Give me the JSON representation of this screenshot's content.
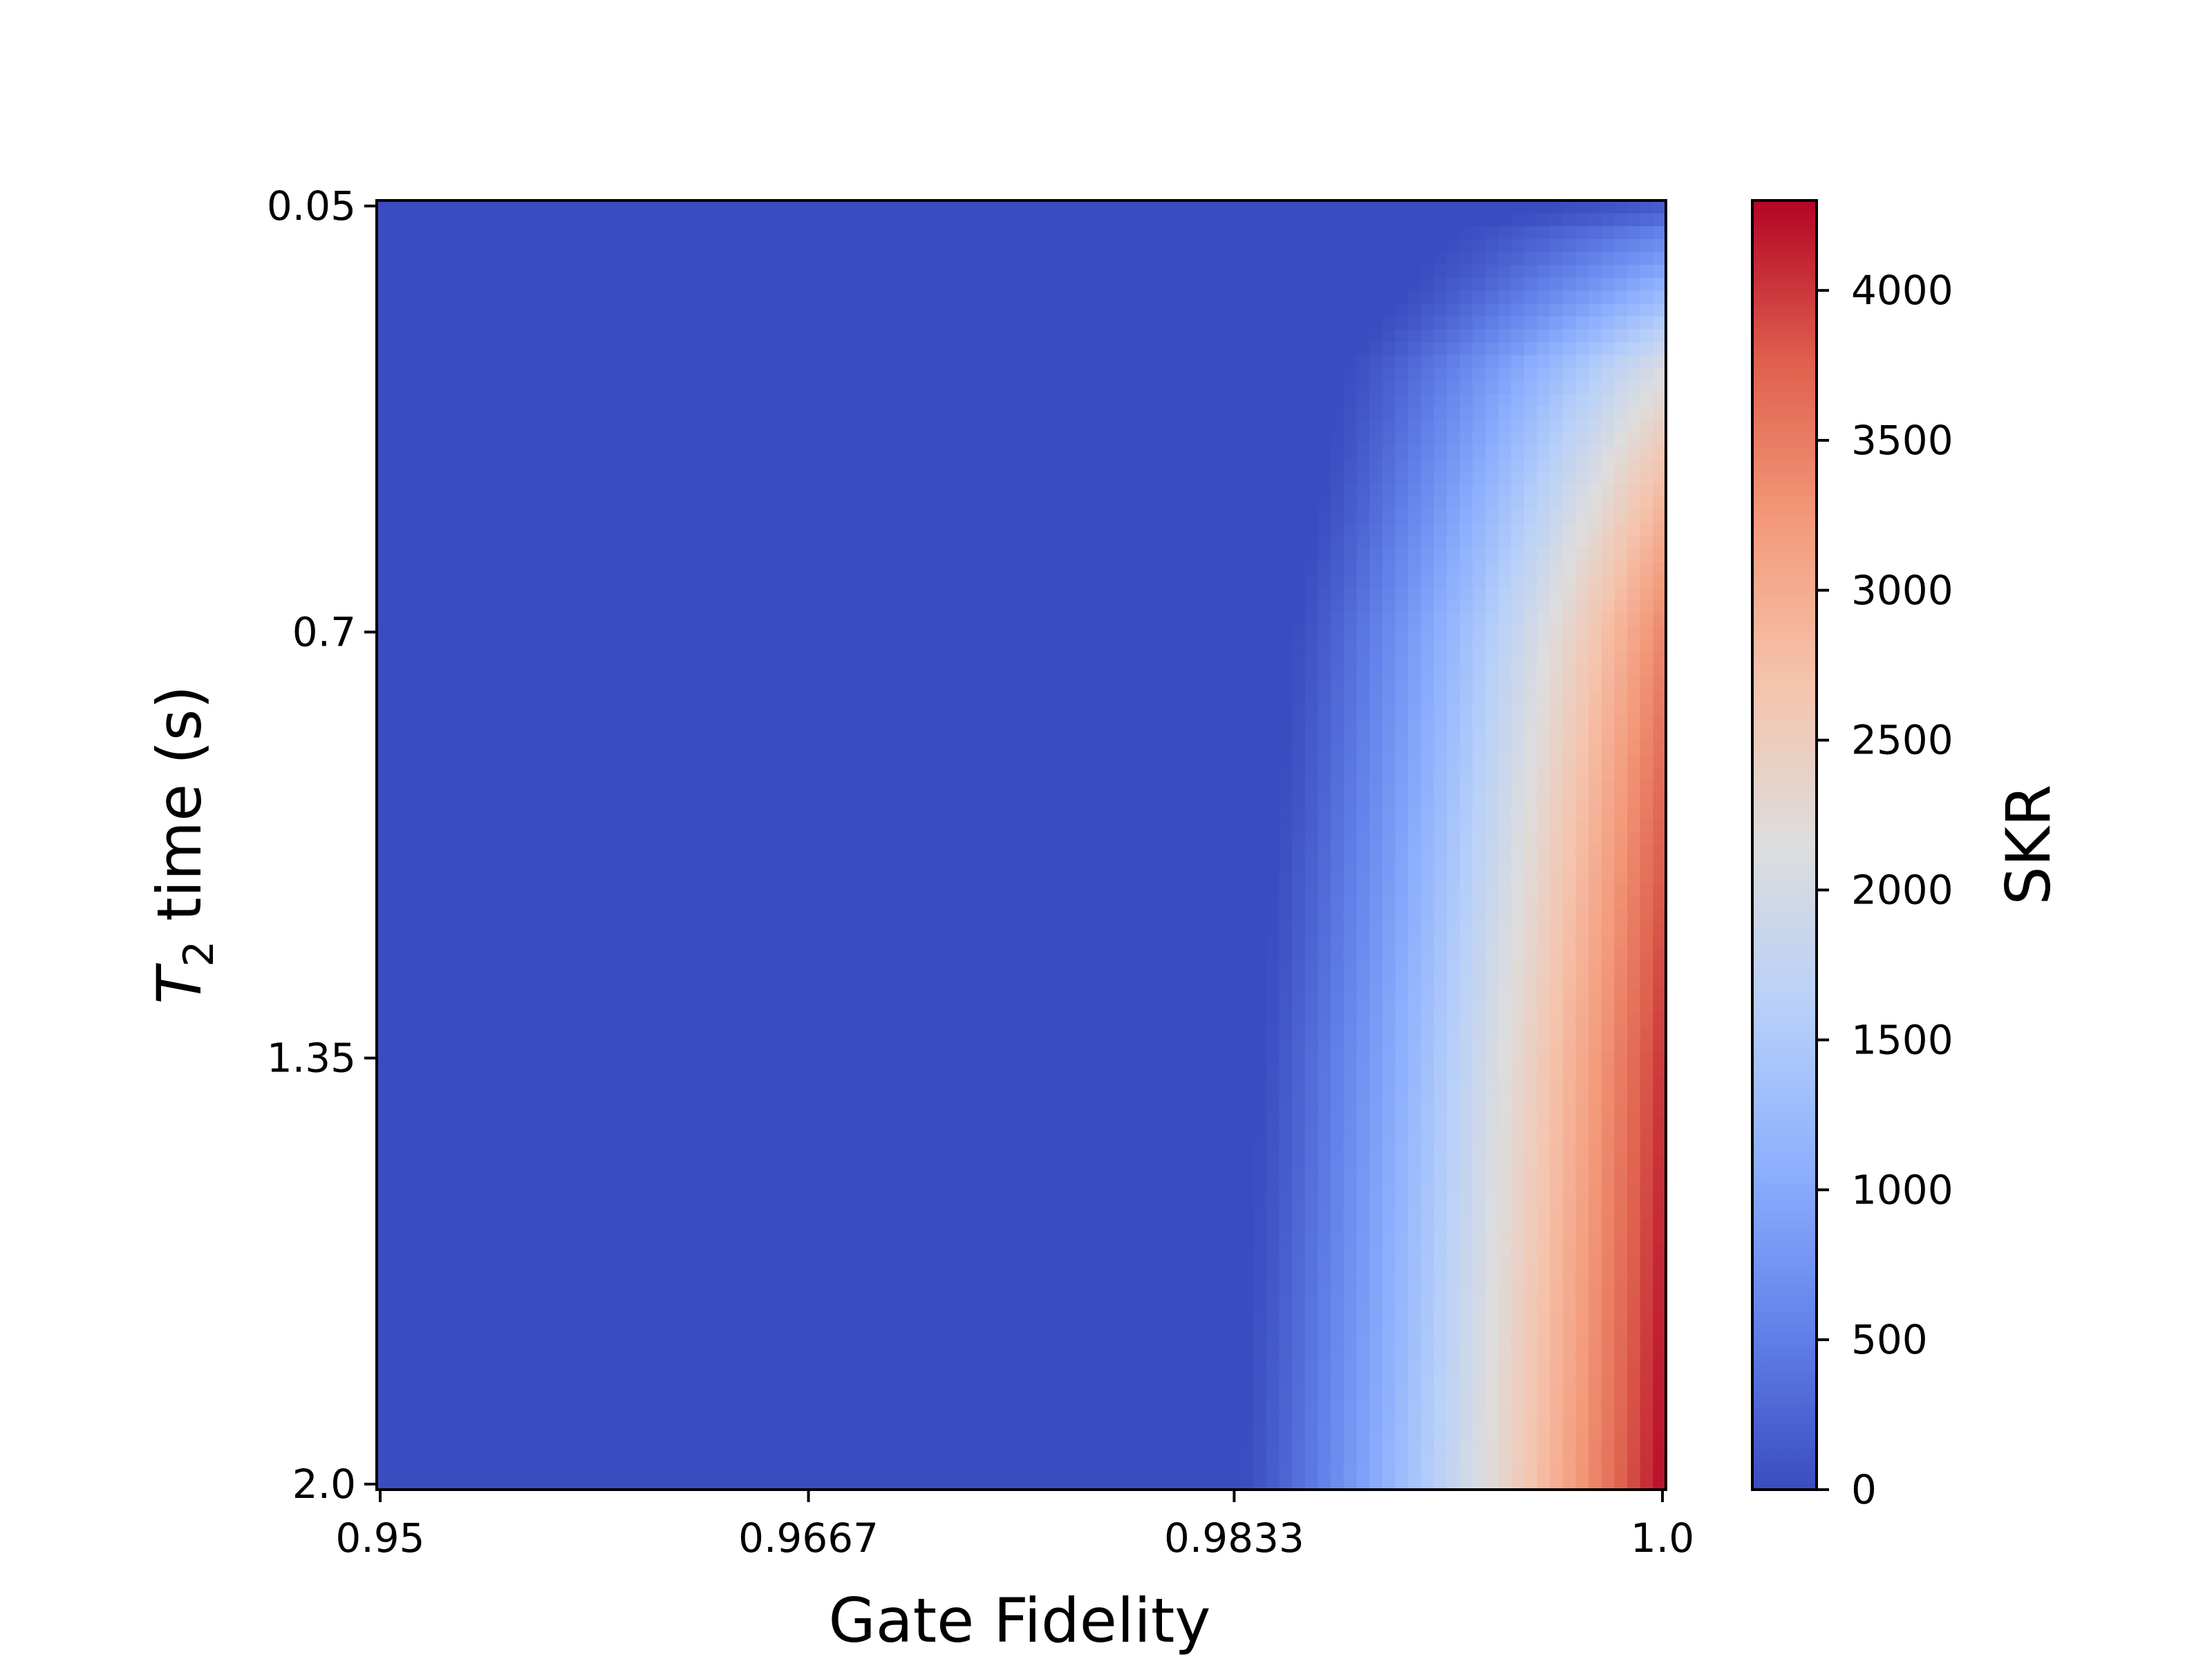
{
  "chart_data": {
    "type": "heatmap",
    "title": "",
    "xlabel": "Gate Fidelity",
    "ylabel": {
      "symbol": "T",
      "subscript": "2",
      "rest": " time (s)"
    },
    "x_ticks": [
      "0.95",
      "0.9667",
      "0.9833",
      "1.0"
    ],
    "x_tick_values": [
      0.95,
      0.9667,
      0.9833,
      1.0
    ],
    "y_ticks": [
      "0.05",
      "0.7",
      "1.35",
      "2.0"
    ],
    "y_tick_values": [
      0.05,
      0.7,
      1.35,
      2.0
    ],
    "x_range": [
      0.95,
      1.0
    ],
    "y_range": [
      0.05,
      2.0
    ],
    "grid_size": [
      100,
      100
    ],
    "colorbar": {
      "label": "SKR",
      "ticks": [
        "0",
        "500",
        "1000",
        "1500",
        "2000",
        "2500",
        "3000",
        "3500",
        "4000"
      ],
      "tick_values": [
        0,
        500,
        1000,
        1500,
        2000,
        2500,
        3000,
        3500,
        4000
      ],
      "range": [
        0,
        4300
      ],
      "colormap": "coolwarm"
    },
    "cutoff_fidelity_by_T2": [
      {
        "T2": 0.05,
        "fidelity": 0.996
      },
      {
        "T2": 0.1,
        "fidelity": 0.9915
      },
      {
        "T2": 0.3,
        "fidelity": 0.9875
      },
      {
        "T2": 0.7,
        "fidelity": 0.9855
      },
      {
        "T2": 1.35,
        "fidelity": 0.9842
      },
      {
        "T2": 2.0,
        "fidelity": 0.9835
      }
    ],
    "approx_values": [
      {
        "fidelity": 0.9833,
        "T2": 2.0,
        "skr": 150
      },
      {
        "fidelity": 0.99,
        "T2": 2.0,
        "skr": 1500
      },
      {
        "fidelity": 0.993,
        "T2": 2.0,
        "skr": 2200
      },
      {
        "fidelity": 0.9967,
        "T2": 2.0,
        "skr": 3200
      },
      {
        "fidelity": 1.0,
        "T2": 2.0,
        "skr": 4300
      },
      {
        "fidelity": 1.0,
        "T2": 0.7,
        "skr": 3800
      },
      {
        "fidelity": 1.0,
        "T2": 0.3,
        "skr": 2700
      },
      {
        "fidelity": 1.0,
        "T2": 0.1,
        "skr": 1500
      },
      {
        "fidelity": 1.0,
        "T2": 0.05,
        "skr": 0
      }
    ]
  }
}
